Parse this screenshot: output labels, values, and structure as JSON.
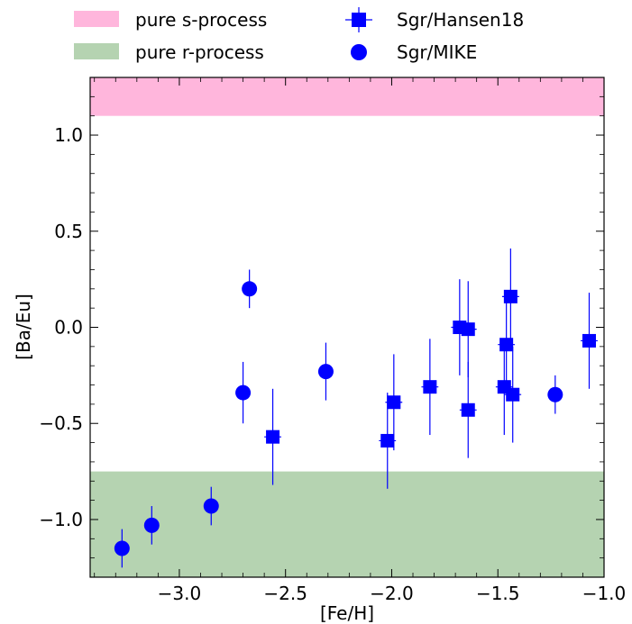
{
  "chart_data": {
    "type": "scatter",
    "title": "",
    "xlabel": "[Fe/H]",
    "ylabel": "[Ba/Eu]",
    "xlim": [
      -3.42,
      -1.0
    ],
    "ylim": [
      -1.3,
      1.3
    ],
    "x_ticks": [
      -3.0,
      -2.5,
      -2.0,
      -1.5,
      -1.0
    ],
    "y_ticks": [
      -1.0,
      -0.5,
      0.0,
      0.5,
      1.0
    ],
    "x_tick_labels": [
      "−3.0",
      "−2.5",
      "−2.0",
      "−1.5",
      "−1.0"
    ],
    "y_tick_labels": [
      "−1.0",
      "−0.5",
      "0.0",
      "0.5",
      "1.0"
    ],
    "grid": false,
    "legend_position": "top-outside",
    "bands": [
      {
        "name": "pure s-process",
        "y_range": [
          1.1,
          1.3
        ],
        "color": "#ffb6dc"
      },
      {
        "name": "pure r-process",
        "y_range": [
          -1.3,
          -0.75
        ],
        "color": "#b5d3b1"
      }
    ],
    "series": [
      {
        "name": "Sgr/Hansen18",
        "marker": "square",
        "color": "#0000ff",
        "points": [
          {
            "x": -2.56,
            "y": -0.57,
            "xerr": 0.04,
            "yerr": 0.25
          },
          {
            "x": -2.02,
            "y": -0.59,
            "xerr": 0.04,
            "yerr": 0.25
          },
          {
            "x": -1.99,
            "y": -0.39,
            "xerr": 0.04,
            "yerr": 0.25
          },
          {
            "x": -1.82,
            "y": -0.31,
            "xerr": 0.04,
            "yerr": 0.25
          },
          {
            "x": -1.68,
            "y": 0.0,
            "xerr": 0.04,
            "yerr": 0.25
          },
          {
            "x": -1.64,
            "y": -0.01,
            "xerr": 0.04,
            "yerr": 0.25
          },
          {
            "x": -1.64,
            "y": -0.43,
            "xerr": 0.04,
            "yerr": 0.25
          },
          {
            "x": -1.47,
            "y": -0.31,
            "xerr": 0.04,
            "yerr": 0.25
          },
          {
            "x": -1.46,
            "y": -0.09,
            "xerr": 0.04,
            "yerr": 0.25
          },
          {
            "x": -1.44,
            "y": 0.16,
            "xerr": 0.04,
            "yerr": 0.25
          },
          {
            "x": -1.43,
            "y": -0.35,
            "xerr": 0.04,
            "yerr": 0.25
          },
          {
            "x": -1.07,
            "y": -0.07,
            "xerr": 0.04,
            "yerr": 0.25
          }
        ]
      },
      {
        "name": "Sgr/MIKE",
        "marker": "circle",
        "color": "#0000ff",
        "points": [
          {
            "x": -3.27,
            "y": -1.15,
            "xerr": 0.0,
            "yerr": 0.1
          },
          {
            "x": -3.13,
            "y": -1.03,
            "xerr": 0.0,
            "yerr": 0.1
          },
          {
            "x": -2.85,
            "y": -0.93,
            "xerr": 0.0,
            "yerr": 0.1
          },
          {
            "x": -2.7,
            "y": -0.34,
            "xerr": 0.0,
            "yerr": 0.16
          },
          {
            "x": -2.67,
            "y": 0.2,
            "xerr": 0.0,
            "yerr": 0.1
          },
          {
            "x": -2.31,
            "y": -0.23,
            "xerr": 0.0,
            "yerr": 0.15
          },
          {
            "x": -1.23,
            "y": -0.35,
            "xerr": 0.0,
            "yerr": 0.1
          }
        ]
      }
    ]
  }
}
